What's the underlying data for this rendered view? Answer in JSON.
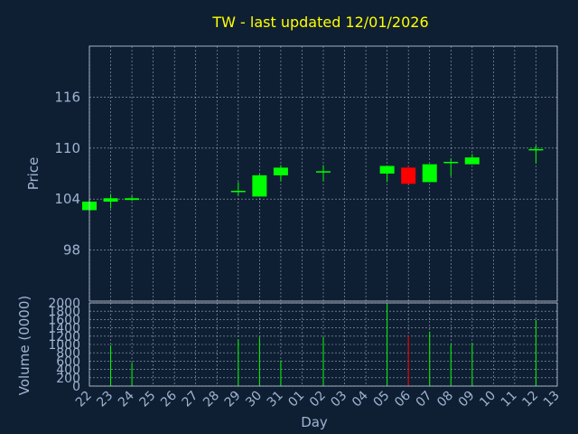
{
  "chart_data": {
    "type": "candlestick",
    "title": "TW - last updated 12/01/2026",
    "xlabel": "Day",
    "price_panel": {
      "ylabel": "Price",
      "ylim": [
        92,
        122
      ],
      "yticks": [
        98,
        104,
        110,
        116
      ]
    },
    "volume_panel": {
      "ylabel": "Volume (0000)",
      "ylim": [
        0,
        2000
      ],
      "yticks": [
        0,
        200,
        400,
        600,
        800,
        1000,
        1200,
        1400,
        1600,
        1800,
        2000
      ]
    },
    "categories": [
      "22",
      "23",
      "24",
      "25",
      "26",
      "27",
      "28",
      "29",
      "30",
      "31",
      "01",
      "02",
      "03",
      "04",
      "05",
      "06",
      "07",
      "08",
      "09",
      "10",
      "11",
      "12",
      "13"
    ],
    "candles": [
      {
        "day": "22",
        "open": 102.7,
        "close": 103.7,
        "high": 103.9,
        "low": 102.6,
        "volume": 0
      },
      {
        "day": "23",
        "open": 103.7,
        "close": 104.1,
        "high": 104.6,
        "low": 102.9,
        "volume": 980
      },
      {
        "day": "24",
        "open": 103.9,
        "close": 104.1,
        "high": 104.4,
        "low": 103.8,
        "volume": 560
      },
      {
        "day": "29",
        "open": 104.9,
        "close": 104.9,
        "high": 106.0,
        "low": 104.4,
        "volume": 1130
      },
      {
        "day": "30",
        "open": 104.3,
        "close": 106.8,
        "high": 106.9,
        "low": 104.3,
        "volume": 1170
      },
      {
        "day": "31",
        "open": 106.8,
        "close": 107.7,
        "high": 108.0,
        "low": 106.1,
        "volume": 620
      },
      {
        "day": "02",
        "open": 107.2,
        "close": 107.2,
        "high": 108.0,
        "low": 106.1,
        "volume": 1180
      },
      {
        "day": "05",
        "open": 107.0,
        "close": 107.9,
        "high": 107.9,
        "low": 106.0,
        "volume": 1980
      },
      {
        "day": "06",
        "open": 107.7,
        "close": 105.8,
        "high": 107.9,
        "low": 105.8,
        "volume": 1220
      },
      {
        "day": "07",
        "open": 106.0,
        "close": 108.1,
        "high": 108.1,
        "low": 106.0,
        "volume": 1310
      },
      {
        "day": "08",
        "open": 108.3,
        "close": 108.3,
        "high": 108.8,
        "low": 106.7,
        "volume": 1000
      },
      {
        "day": "09",
        "open": 108.1,
        "close": 108.9,
        "high": 109.3,
        "low": 108.1,
        "volume": 1040
      },
      {
        "day": "12",
        "open": 109.8,
        "close": 109.8,
        "high": 110.3,
        "low": 108.2,
        "volume": 1590
      }
    ],
    "colors": {
      "up": "#00ff00",
      "down": "#ff0000",
      "background": "#0f1f33",
      "text": "#9fb4d0",
      "title": "#ffff00"
    },
    "grid": true
  }
}
